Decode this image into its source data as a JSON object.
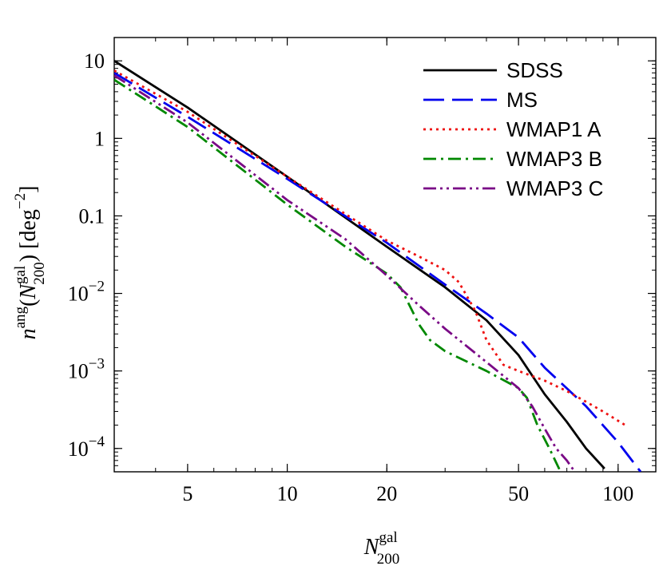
{
  "chart_data": {
    "type": "line",
    "xscale": "log",
    "yscale": "log",
    "xlim": [
      3.0,
      130
    ],
    "ylim": [
      5e-05,
      20
    ],
    "xlabel": {
      "main": "N",
      "sup": "gal",
      "sub": "200"
    },
    "ylabel": {
      "prefix": "n",
      "sup": "ang",
      "open": "(",
      "var": "N",
      "var_sup": "gal",
      "var_sub": "200",
      "close": ")",
      "unit_open": " [deg",
      "unit_sup": "−2",
      "unit_close": "]"
    },
    "x_ticks": [
      {
        "value": 5,
        "label": "5"
      },
      {
        "value": 10,
        "label": "10"
      },
      {
        "value": 20,
        "label": "20"
      },
      {
        "value": 50,
        "label": "50"
      },
      {
        "value": 100,
        "label": "100"
      }
    ],
    "y_ticks": [
      {
        "value": 10,
        "base": "10",
        "exp": ""
      },
      {
        "value": 1,
        "base": "1",
        "exp": ""
      },
      {
        "value": 0.1,
        "base": "0.1",
        "exp": ""
      },
      {
        "value": 0.01,
        "base": "10",
        "exp": "−2"
      },
      {
        "value": 0.001,
        "base": "10",
        "exp": "−3"
      },
      {
        "value": 0.0001,
        "base": "10",
        "exp": "−4"
      }
    ],
    "legend_position": "top-right",
    "series": [
      {
        "name": "SDSS",
        "color": "#000000",
        "dash": "solid",
        "x": [
          3.0,
          5,
          10,
          20,
          30,
          40,
          50,
          60,
          70,
          80,
          91
        ],
        "y": [
          10,
          2.5,
          0.32,
          0.04,
          0.012,
          0.0045,
          0.0016,
          0.0005,
          0.00022,
          0.0001,
          5.5e-05
        ]
      },
      {
        "name": "MS",
        "color": "#0000ee",
        "dash": "longdash",
        "x": [
          3.0,
          5,
          10,
          20,
          30,
          40,
          50,
          60,
          80,
          100,
          117
        ],
        "y": [
          7,
          1.9,
          0.3,
          0.045,
          0.013,
          0.0055,
          0.0027,
          0.0011,
          0.00035,
          0.00012,
          5e-05
        ]
      },
      {
        "name": "WMAP1 A",
        "color": "#ee1111",
        "dash": "dotted",
        "x": [
          3.0,
          5,
          10,
          20,
          25,
          30,
          33,
          37,
          40,
          45,
          50,
          60,
          70,
          80,
          90,
          105
        ],
        "y": [
          7.5,
          2.2,
          0.32,
          0.048,
          0.03,
          0.02,
          0.014,
          0.006,
          0.0025,
          0.0012,
          0.001,
          0.00075,
          0.00055,
          0.0004,
          0.0003,
          0.0002
        ]
      },
      {
        "name": "WMAP3 B",
        "color": "#008800",
        "dash": "dashdot",
        "x": [
          3.0,
          5,
          10,
          15,
          20,
          22,
          25,
          27,
          30,
          40,
          50,
          53,
          57,
          62,
          67
        ],
        "y": [
          5.7,
          1.4,
          0.14,
          0.04,
          0.018,
          0.012,
          0.004,
          0.0025,
          0.0018,
          0.001,
          0.0006,
          0.00045,
          0.0002,
          0.0001,
          5e-05
        ]
      },
      {
        "name": "WMAP3 C",
        "color": "#7a0a86",
        "dash": "dashdotdot",
        "x": [
          3.0,
          5,
          10,
          15,
          20,
          25,
          30,
          40,
          50,
          55,
          60,
          65,
          70,
          74
        ],
        "y": [
          6.5,
          1.6,
          0.16,
          0.05,
          0.017,
          0.007,
          0.0035,
          0.0013,
          0.0006,
          0.00035,
          0.00018,
          0.0001,
          7e-05,
          5e-05
        ]
      }
    ]
  }
}
